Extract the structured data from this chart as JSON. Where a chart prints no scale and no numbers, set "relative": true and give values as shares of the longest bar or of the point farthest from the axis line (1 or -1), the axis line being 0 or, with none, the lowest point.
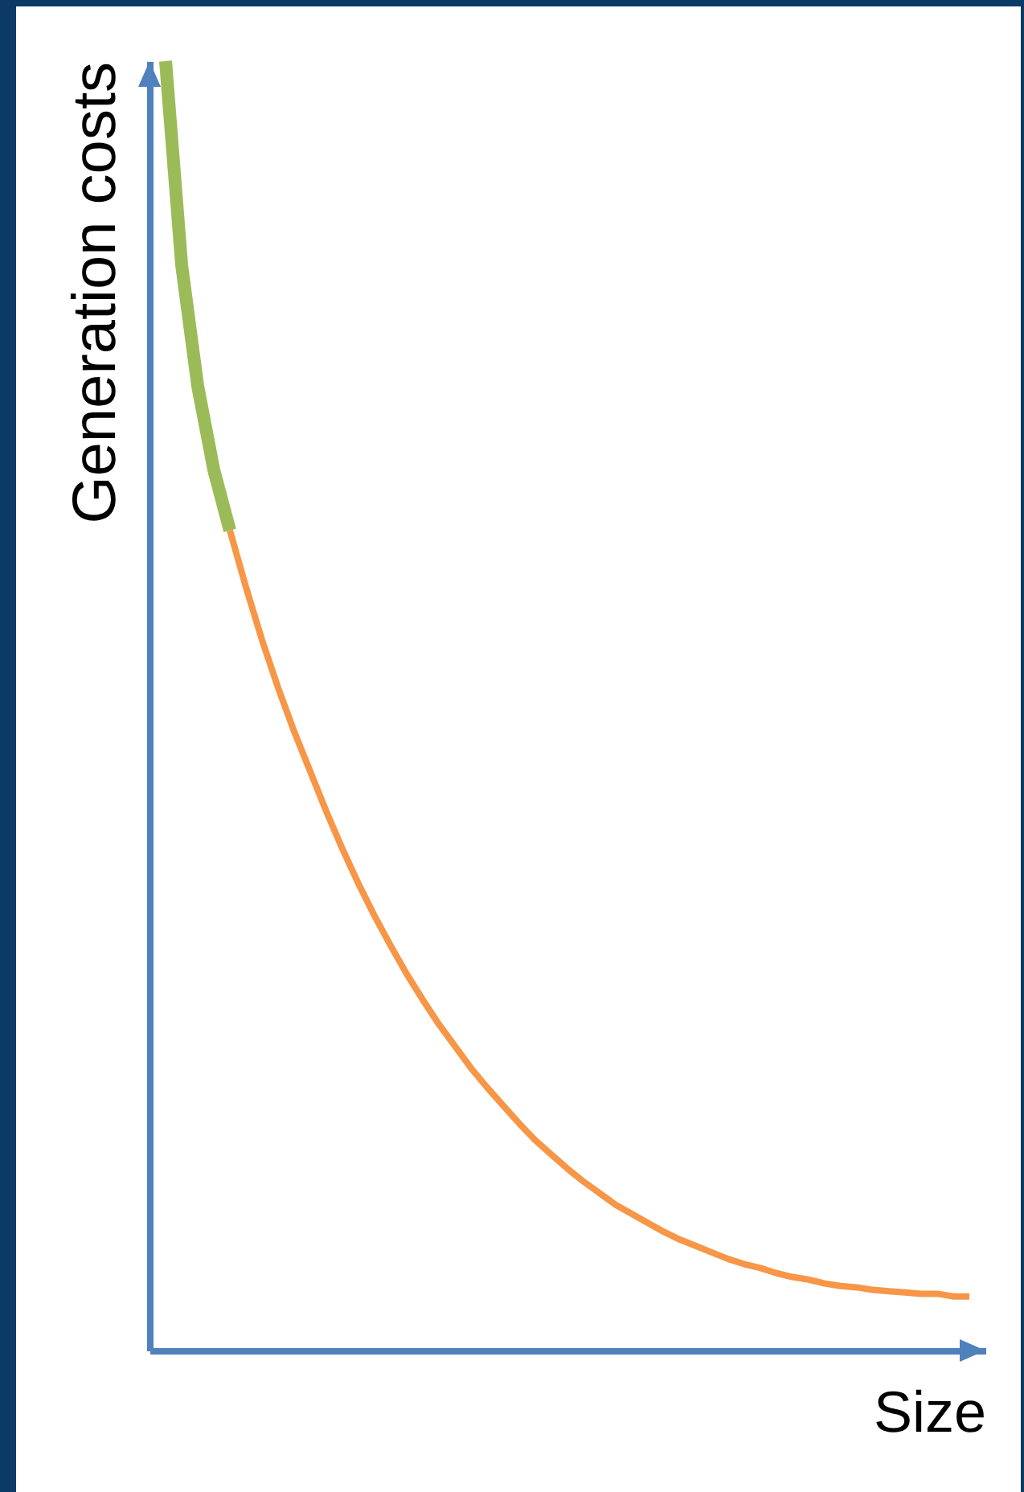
{
  "chart_data": {
    "type": "line",
    "relative": true,
    "xlabel": "Size",
    "ylabel": "Generation costs",
    "tick_labels": false,
    "marker": "none",
    "line_style": "solid",
    "categories": [
      null,
      null,
      null,
      null,
      null,
      null,
      null,
      null,
      null,
      null,
      null,
      null,
      null,
      null,
      null,
      null,
      null,
      null,
      null,
      null,
      null,
      null,
      null,
      null,
      null,
      null,
      null,
      null,
      null,
      null,
      null,
      null,
      null,
      null,
      null,
      null,
      null,
      null,
      null,
      null,
      null,
      null,
      null,
      null,
      null,
      null,
      null,
      null,
      null,
      null,
      null
    ],
    "series": [
      {
        "color": "#9bbb59",
        "values": [
          1.0,
          0.842,
          0.748,
          0.683,
          0.636,
          null,
          null,
          null,
          null,
          null,
          null,
          null,
          null,
          null,
          null,
          null,
          null,
          null,
          null,
          null,
          null,
          null,
          null,
          null,
          null,
          null,
          null,
          null,
          null,
          null,
          null,
          null,
          null,
          null,
          null,
          null,
          null,
          null,
          null,
          null,
          null,
          null,
          null,
          null,
          null,
          null,
          null,
          null,
          null,
          null,
          null
        ]
      },
      {
        "color": "#f79646",
        "values": [
          null,
          null,
          null,
          null,
          0.636,
          0.592,
          0.551,
          0.514,
          0.48,
          0.449,
          0.418,
          0.389,
          0.362,
          0.337,
          0.314,
          0.292,
          0.272,
          0.253,
          0.236,
          0.219,
          0.204,
          0.19,
          0.176,
          0.163,
          0.152,
          0.141,
          0.131,
          0.122,
          0.113,
          0.106,
          0.099,
          0.092,
          0.086,
          0.081,
          0.076,
          0.071,
          0.067,
          0.064,
          0.06,
          0.057,
          0.055,
          0.052,
          0.05,
          0.049,
          0.047,
          0.046,
          0.045,
          0.044,
          0.044,
          0.042,
          0.042
        ]
      }
    ]
  }
}
